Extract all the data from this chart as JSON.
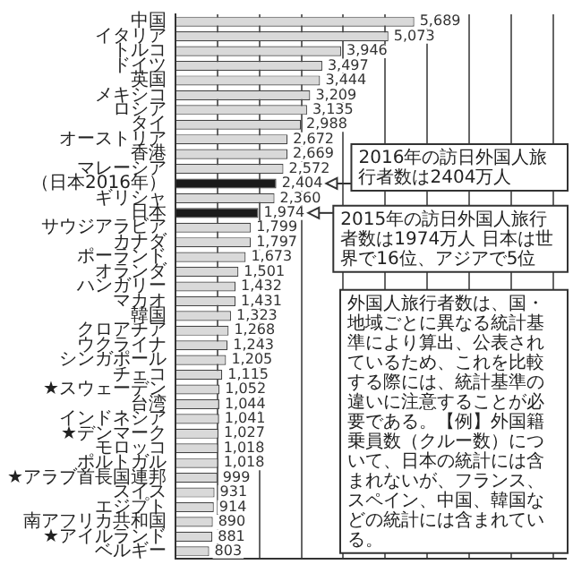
{
  "chart_data": {
    "type": "bar",
    "orientation": "horizontal",
    "categories": [
      "中国",
      "イタリア",
      "トルコ",
      "ドイツ",
      "英国",
      "メキシコ",
      "ロシア",
      "タイ",
      "オーストリア",
      "香港",
      "マレーシア",
      "（日本2016年）",
      "ギリシャ",
      "日本",
      "サウジアラビア",
      "カナダ",
      "ポーランド",
      "オランダ",
      "ハンガリー",
      "マカオ",
      "韓国",
      "クロアチア",
      "ウクライナ",
      "シンガポール",
      "チェコ",
      "★スウェーデン",
      "台湾",
      "インドネシア",
      "★デンマーク",
      "モロッコ",
      "ポルトガル",
      "★アラブ首長国連邦",
      "スイス",
      "エジプト",
      "南アフリカ共和国",
      "★アイルランド",
      "ベルギー"
    ],
    "values": [
      5689,
      5073,
      3946,
      3497,
      3444,
      3209,
      3135,
      2988,
      2672,
      2669,
      2572,
      2404,
      2360,
      1974,
      1799,
      1797,
      1673,
      1501,
      1432,
      1431,
      1323,
      1268,
      1243,
      1205,
      1115,
      1052,
      1044,
      1041,
      1027,
      1018,
      1018,
      999,
      931,
      914,
      890,
      881,
      803
    ],
    "value_labels": [
      "5,689",
      "5,073",
      "3,946",
      "3,497",
      "3,444",
      "3,209",
      "3,135",
      "2,988",
      "2,672",
      "2,669",
      "2,572",
      "2,404",
      "2,360",
      "1,974",
      "1,799",
      "1,797",
      "1,673",
      "1,501",
      "1,432",
      "1,431",
      "1,323",
      "1,268",
      "1,243",
      "1,205",
      "1,115",
      "1,052",
      "1,044",
      "1,041",
      "1,027",
      "1,018",
      "1,018",
      "999",
      "931",
      "914",
      "890",
      "881",
      "803"
    ],
    "colors": [
      "#d9d9d9",
      "#d9d9d9",
      "#d9d9d9",
      "#d9d9d9",
      "#d9d9d9",
      "#d9d9d9",
      "#d9d9d9",
      "#d9d9d9",
      "#d9d9d9",
      "#d9d9d9",
      "#d9d9d9",
      "#1a1a1a",
      "#d9d9d9",
      "#1a1a1a",
      "#d9d9d9",
      "#d9d9d9",
      "#d9d9d9",
      "#d9d9d9",
      "#d9d9d9",
      "#d9d9d9",
      "#d9d9d9",
      "#d9d9d9",
      "#d9d9d9",
      "#d9d9d9",
      "#d9d9d9",
      "#d9d9d9",
      "#d9d9d9",
      "#d9d9d9",
      "#d9d9d9",
      "#d9d9d9",
      "#d9d9d9",
      "#d9d9d9",
      "#d9d9d9",
      "#d9d9d9",
      "#d9d9d9",
      "#d9d9d9",
      "#d9d9d9"
    ],
    "xlim": [
      0,
      9300
    ],
    "xticks": [
      {
        "value": 0,
        "label": null
      },
      {
        "value": 1000,
        "label": null
      },
      {
        "value": 2000,
        "label": null
      },
      {
        "value": 3000,
        "label": null
      },
      {
        "value": 4000,
        "label": null
      },
      {
        "value": 5000,
        "label": null
      },
      {
        "value": 6000,
        "label": null
      },
      {
        "value": 7000,
        "label": null
      },
      {
        "value": 8000,
        "label": null
      },
      {
        "value": 9000,
        "label": null
      }
    ],
    "tick_labels": "y",
    "grid": "x",
    "annotations": [
      "2016年の訪日外国人旅行者数は2404万人",
      "2015年の訪日外国人旅行者数は1974万人 日本は世界で16位、アジアで5位",
      "外国人旅行者数は、国・地域ごとに異なる統計基準により算出、公表されているため、これを比較する際には、統計基準の違いに注意することが必要である。【例】外国籍乗員数（クルー数）について、日本の統計には含まれないが、フランス、スペイン、中国、韓国などの統計には含まれている。"
    ]
  }
}
